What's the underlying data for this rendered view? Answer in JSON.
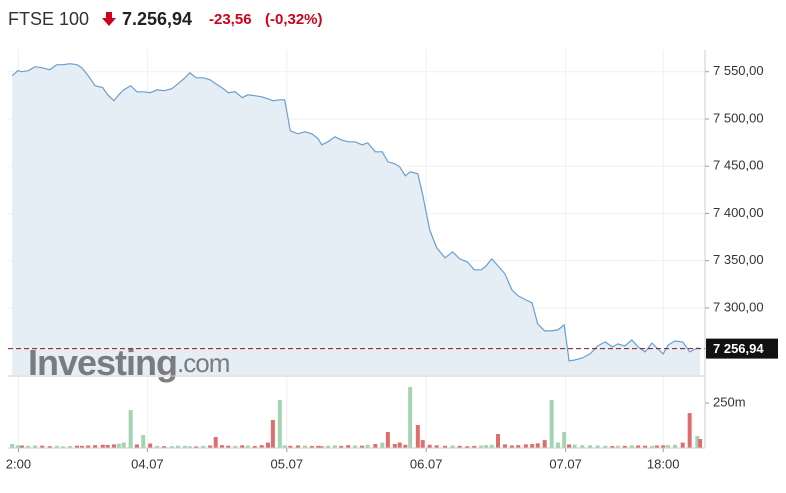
{
  "chart_data": {
    "type": "area",
    "title": "FTSE 100",
    "price": "7.256,94",
    "change": "-23,56",
    "change_pct": "(-0,32%)",
    "watermark": "Investing",
    "watermark_suffix": ".com",
    "color": "#6a9fd0",
    "fill": "#e5edf5",
    "grid": true,
    "xlim": [
      0,
      100
    ],
    "xticks": [
      {
        "value": 1.5,
        "label": "2:00"
      },
      {
        "value": 20,
        "label": "04.07"
      },
      {
        "value": 40,
        "label": "05.07"
      },
      {
        "value": 60,
        "label": "06.07"
      },
      {
        "value": 80,
        "label": "07.07"
      },
      {
        "value": 94,
        "label": "18:00"
      }
    ],
    "ylim": [
      7229,
      7573
    ],
    "yticks": [
      {
        "value": 7300,
        "label": "7 300,00"
      },
      {
        "value": 7350,
        "label": "7 350,00"
      },
      {
        "value": 7400,
        "label": "7 400,00"
      },
      {
        "value": 7450,
        "label": "7 450,00"
      },
      {
        "value": 7500,
        "label": "7 500,00"
      },
      {
        "value": 7550,
        "label": "7 550,00"
      }
    ],
    "last_price": {
      "value": 7256.94,
      "label": "7 256,94"
    },
    "x": [
      0.6,
      1.4,
      2.0,
      2.9,
      3.9,
      4.9,
      6.0,
      7.0,
      7.9,
      8.9,
      9.9,
      10.6,
      11.5,
      12.5,
      13.6,
      14.3,
      15.2,
      15.9,
      16.6,
      17.6,
      18.5,
      19.4,
      20.4,
      21.4,
      22.4,
      23.5,
      24.4,
      25.4,
      26.1,
      27.0,
      28.0,
      29.0,
      29.8,
      30.7,
      31.6,
      32.6,
      33.6,
      34.4,
      35.4,
      36.4,
      37.3,
      38.0,
      39.0,
      39.7,
      40.5,
      41.6,
      42.6,
      43.6,
      44.5,
      45.0,
      45.9,
      46.9,
      47.8,
      48.8,
      49.8,
      50.8,
      51.6,
      52.7,
      53.7,
      54.5,
      55.5,
      56.2,
      57.0,
      57.7,
      58.8,
      59.5,
      60.5,
      61.5,
      62.7,
      63.8,
      64.8,
      65.9,
      66.9,
      67.9,
      68.6,
      69.4,
      70.3,
      71.3,
      72.3,
      73.2,
      74.3,
      75.2,
      76.0,
      77.0,
      78.0,
      78.9,
      79.8,
      80.5,
      81.3,
      82.4,
      83.5,
      84.6,
      85.7,
      86.7,
      87.5,
      88.5,
      89.5,
      90.4,
      91.4,
      92.4,
      93.1,
      94.0,
      94.7,
      95.7,
      96.8,
      97.8,
      98.9,
      99.3
    ],
    "values": [
      7545.8,
      7551.1,
      7550,
      7551.1,
      7555.3,
      7554.2,
      7552.1,
      7557.4,
      7557.4,
      7558.5,
      7557.4,
      7554.2,
      7545.8,
      7535.2,
      7533.1,
      7525.6,
      7519.3,
      7525.6,
      7530.9,
      7535.2,
      7528.8,
      7528.8,
      7527.8,
      7530.9,
      7529.9,
      7532,
      7537.3,
      7543.6,
      7548.9,
      7543.6,
      7543.6,
      7541.5,
      7537.3,
      7533.1,
      7527.8,
      7528.8,
      7522.5,
      7525.6,
      7524.6,
      7523.5,
      7521.4,
      7519.3,
      7520.3,
      7520.3,
      7487.5,
      7484.3,
      7486.4,
      7484.3,
      7479.0,
      7472.7,
      7475.8,
      7481.1,
      7478.0,
      7475.8,
      7475.8,
      7472.7,
      7474.8,
      7465.3,
      7465.3,
      7454.7,
      7452.5,
      7449.4,
      7439.8,
      7444.1,
      7442.0,
      7419.7,
      7382.6,
      7363.6,
      7353.0,
      7359.3,
      7351.9,
      7348.7,
      7340.3,
      7340.3,
      7344.5,
      7351.9,
      7344.5,
      7336.0,
      7319.1,
      7312.7,
      7308.5,
      7305.3,
      7283.1,
      7275.7,
      7275.7,
      7276.7,
      7282.0,
      7243.9,
      7244.9,
      7247.0,
      7251.3,
      7259.8,
      7264.0,
      7258.7,
      7261.9,
      7259.8,
      7266.1,
      7258.7,
      7253.4,
      7262.9,
      7257.6,
      7251.3,
      7260.8,
      7265.0,
      7264.0,
      7253.4,
      7257.6,
      7256.9
    ],
    "volume": {
      "ylim": [
        0,
        389
      ],
      "yticks": [
        {
          "value": 250,
          "label": "250m"
        }
      ],
      "up_color": "#a3d4b0",
      "down_color": "#de6e6e",
      "values": [
        22,
        15,
        14,
        12,
        14,
        13,
        10,
        12,
        9,
        11,
        13,
        12,
        14,
        16,
        18,
        17,
        20,
        24,
        30,
        211,
        20,
        72,
        25,
        12,
        10,
        11,
        13,
        12,
        10,
        9,
        12,
        14,
        61,
        16,
        13,
        12,
        15,
        14,
        11,
        16,
        30,
        156,
        267,
        15,
        12,
        14,
        13,
        11,
        12,
        10,
        13,
        15,
        12,
        16,
        14,
        13,
        18,
        22,
        30,
        89,
        22,
        30,
        18,
        339,
        128,
        44,
        18,
        15,
        12,
        14,
        12,
        10,
        12,
        14,
        16,
        18,
        78,
        20,
        14,
        16,
        20,
        22,
        26,
        44,
        267,
        30,
        89,
        20,
        18,
        16,
        15,
        14,
        12,
        11,
        13,
        12,
        15,
        14,
        13,
        12,
        14,
        15,
        16,
        18,
        30,
        194,
        67,
        50
      ]
    }
  }
}
